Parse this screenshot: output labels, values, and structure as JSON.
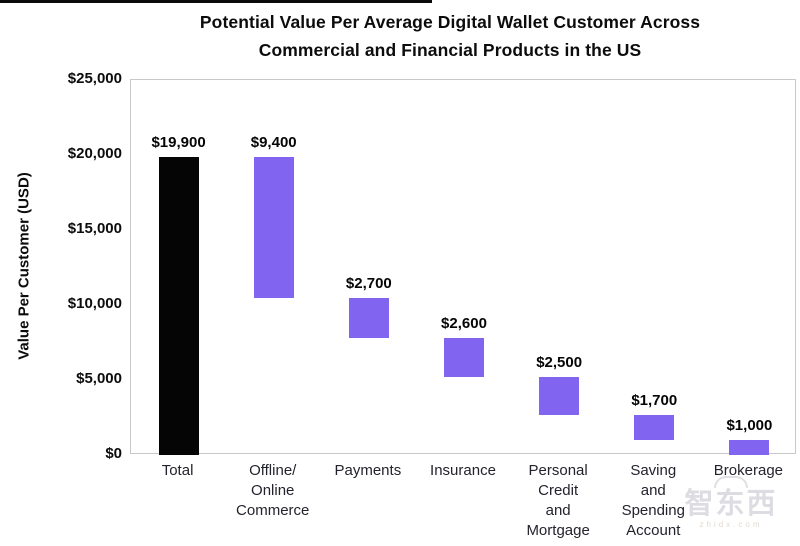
{
  "title": {
    "line1": "Potential Value Per Average Digital Wallet Customer Across",
    "line2": "Commercial and Financial Products in the US"
  },
  "chart_data": {
    "type": "bar",
    "subtype": "waterfall",
    "title": "Potential Value Per Average Digital Wallet Customer Across Commercial and Financial Products in the US",
    "ylabel": "Value Per Customer (USD)",
    "xlabel": "",
    "ylim": [
      0,
      25000
    ],
    "grid": false,
    "legend": "none",
    "yticks": [
      {
        "label": "$25,000",
        "value": 25000
      },
      {
        "label": "$20,000",
        "value": 20000
      },
      {
        "label": "$15,000",
        "value": 15000
      },
      {
        "label": "$10,000",
        "value": 10000
      },
      {
        "label": "$5,000",
        "value": 5000
      },
      {
        "label": "$0",
        "value": 0
      }
    ],
    "categories": [
      "Total",
      "Offline/ Online Commerce",
      "Payments",
      "Insurance",
      "Personal Credit and Mortgage",
      "Saving and Spending Account",
      "Brokerage"
    ],
    "values": [
      19900,
      9400,
      2700,
      2600,
      2500,
      1700,
      1000
    ],
    "bars": [
      {
        "category_lines": [
          "Total"
        ],
        "value": 19900,
        "value_label": "$19,900",
        "start": 0,
        "end": 19900,
        "color": "#050505"
      },
      {
        "category_lines": [
          "Offline/",
          "Online",
          "Commerce"
        ],
        "value": 9400,
        "value_label": "$9,400",
        "start": 10500,
        "end": 19900,
        "color": "#8164f0"
      },
      {
        "category_lines": [
          "Payments"
        ],
        "value": 2700,
        "value_label": "$2,700",
        "start": 7800,
        "end": 10500,
        "color": "#8164f0"
      },
      {
        "category_lines": [
          "Insurance"
        ],
        "value": 2600,
        "value_label": "$2,600",
        "start": 5200,
        "end": 7800,
        "color": "#8164f0"
      },
      {
        "category_lines": [
          "Personal",
          "Credit",
          "and",
          "Mortgage"
        ],
        "value": 2500,
        "value_label": "$2,500",
        "start": 2700,
        "end": 5200,
        "color": "#8164f0"
      },
      {
        "category_lines": [
          "Saving",
          "and",
          "Spending",
          "Account"
        ],
        "value": 1700,
        "value_label": "$1,700",
        "start": 1000,
        "end": 2700,
        "color": "#8164f0"
      },
      {
        "category_lines": [
          "Brokerage"
        ],
        "value": 1000,
        "value_label": "$1,000",
        "start": 0,
        "end": 1000,
        "color": "#8164f0"
      }
    ],
    "colors": {
      "total_bar": "#050505",
      "segment_bar": "#8164f0",
      "plot_border": "#c9c9cc"
    }
  },
  "watermark": {
    "text": "智东西",
    "subtext": "zhidx.com"
  }
}
